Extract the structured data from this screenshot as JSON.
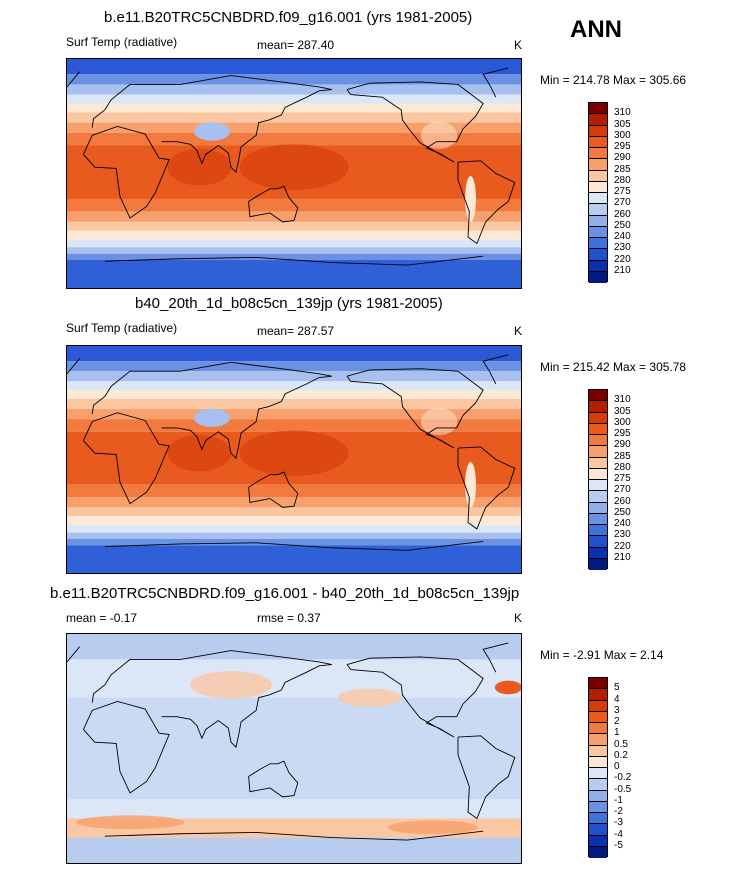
{
  "season": "ANN",
  "panels": [
    {
      "title": "b.e11.B20TRC5CNBDRD.f09_g16.001 (yrs 1981-2005)",
      "left": "Surf Temp (radiative)",
      "center": "mean= 287.40",
      "units": "K",
      "minmax": "Min = 214.78 Max = 305.66",
      "field": "abs",
      "colorbar": {
        "labels": [
          "310",
          "305",
          "300",
          "295",
          "290",
          "285",
          "280",
          "275",
          "270",
          "260",
          "250",
          "240",
          "230",
          "220",
          "210"
        ],
        "colors": [
          "#7a0000",
          "#b41e00",
          "#d63a08",
          "#e85a1e",
          "#f27a3f",
          "#f8a06c",
          "#fbc7a2",
          "#fde8d6",
          "#dbe6f7",
          "#b8ccf0",
          "#8fb0ea",
          "#6a91e3",
          "#4070dc",
          "#2050cc",
          "#0a30b0",
          "#001a80"
        ]
      }
    },
    {
      "title": "b40_20th_1d_b08c5cn_139jp (yrs 1981-2005)",
      "left": "Surf Temp (radiative)",
      "center": "mean= 287.57",
      "units": "K",
      "minmax": "Min = 215.42 Max = 305.78",
      "field": "abs",
      "colorbar": {
        "labels": [
          "310",
          "305",
          "300",
          "295",
          "290",
          "285",
          "280",
          "275",
          "270",
          "260",
          "250",
          "240",
          "230",
          "220",
          "210"
        ],
        "colors": [
          "#7a0000",
          "#b41e00",
          "#d63a08",
          "#e85a1e",
          "#f27a3f",
          "#f8a06c",
          "#fbc7a2",
          "#fde8d6",
          "#dbe6f7",
          "#b8ccf0",
          "#8fb0ea",
          "#6a91e3",
          "#4070dc",
          "#2050cc",
          "#0a30b0",
          "#001a80"
        ]
      }
    },
    {
      "title": "b.e11.B20TRC5CNBDRD.f09_g16.001 - b40_20th_1d_b08c5cn_139jp",
      "left": "mean =  -0.17",
      "center": "rmse =   0.37",
      "units": "K",
      "minmax": "Min =  -2.91 Max =   2.14",
      "field": "diff",
      "colorbar": {
        "labels": [
          "5",
          "4",
          "3",
          "2",
          "1",
          "0.5",
          "0.2",
          "0",
          "-0.2",
          "-0.5",
          "-1",
          "-2",
          "-3",
          "-4",
          "-5"
        ],
        "colors": [
          "#7a0000",
          "#b41e00",
          "#d63a08",
          "#e85a1e",
          "#f27a3f",
          "#f8a06c",
          "#fbc7a2",
          "#fde8d6",
          "#dbe6f7",
          "#b8ccf0",
          "#8fb0ea",
          "#6a91e3",
          "#4070dc",
          "#2050cc",
          "#0a30b0",
          "#001a80"
        ]
      }
    }
  ]
}
